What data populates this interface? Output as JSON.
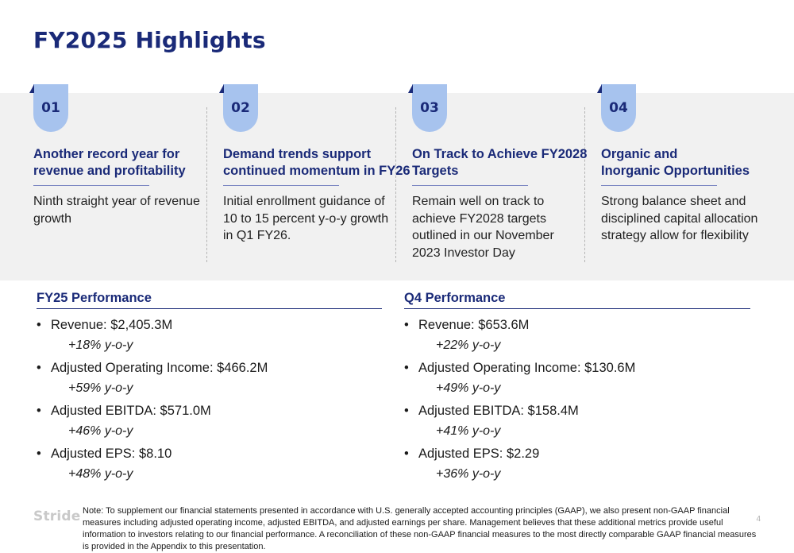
{
  "title": "FY2025 Highlights",
  "highlights": [
    {
      "num": "01",
      "head_l1": "Another record year for",
      "head_l2": "revenue and profitability",
      "desc_lines": [
        "Ninth straight year of revenue",
        "growth"
      ]
    },
    {
      "num": "02",
      "head_l1": "Demand trends support",
      "head_l2": "continued momentum in FY26",
      "desc_lines": [
        "Initial enrollment guidance of",
        "10 to 15 percent y-o-y growth",
        "in Q1 FY26."
      ]
    },
    {
      "num": "03",
      "head_l1": "On Track to Achieve FY2028",
      "head_l2": "Targets",
      "desc_lines": [
        "Remain well on track to",
        "achieve FY2028 targets",
        "outlined in our November",
        "2023 Investor Day"
      ]
    },
    {
      "num": "04",
      "head_l1": "Organic and",
      "head_l2": "Inorganic Opportunities",
      "desc_lines": [
        "Strong balance sheet and",
        "disciplined capital allocation",
        "strategy allow for flexibility"
      ]
    }
  ],
  "fy25": {
    "title": "FY25 Performance",
    "items": [
      {
        "metric": "Revenue: $2,405.3M",
        "growth": "+18% y-o-y"
      },
      {
        "metric": "Adjusted Operating Income: $466.2M",
        "growth": "+59% y-o-y"
      },
      {
        "metric": "Adjusted EBITDA: $571.0M",
        "growth": "+46% y-o-y"
      },
      {
        "metric": "Adjusted EPS: $8.10",
        "growth": "+48% y-o-y"
      }
    ]
  },
  "q4": {
    "title": "Q4 Performance",
    "items": [
      {
        "metric": "Revenue: $653.6M",
        "growth": "+22% y-o-y"
      },
      {
        "metric": "Adjusted Operating Income: $130.6M",
        "growth": "+49% y-o-y"
      },
      {
        "metric": "Adjusted EBITDA: $158.4M",
        "growth": "+41% y-o-y"
      },
      {
        "metric": "Adjusted EPS: $2.29",
        "growth": "+36% y-o-y"
      }
    ]
  },
  "footer": {
    "logo": "Stride",
    "note": "Note: To supplement our financial statements presented in accordance with U.S. generally accepted accounting principles (GAAP), we also present non-GAAP financial measures including adjusted operating income, adjusted EBITDA, and adjusted earnings per share. Management believes that these additional metrics provide useful information to investors relating to our financial performance. A reconciliation of these non-GAAP financial measures to the most directly comparable GAAP financial measures is provided in the Appendix to this presentation.",
    "page": "4"
  },
  "colors": {
    "navy": "#1a2a78",
    "badge": "#a7c3ee",
    "band": "#f1f1f1"
  }
}
